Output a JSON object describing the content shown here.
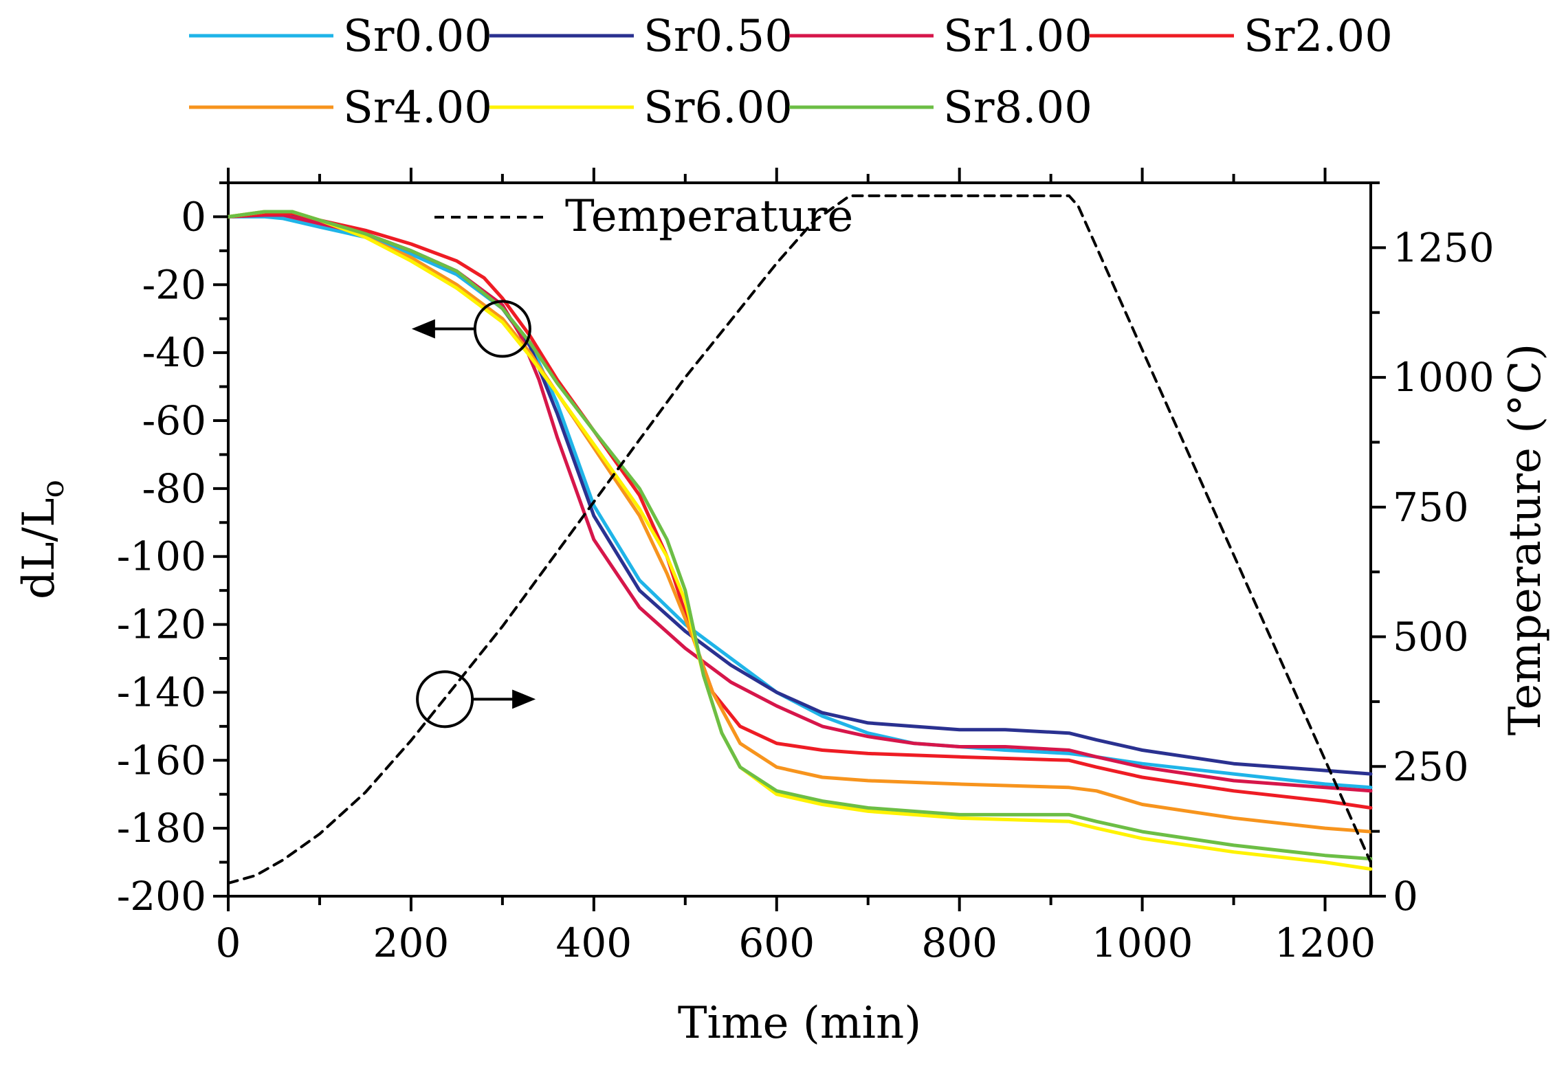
{
  "chart_data": {
    "type": "line",
    "title": "",
    "xlabel": "Time (min)",
    "ylabel_left": "dL/L",
    "ylabel_left_subscript": "o",
    "ylabel_right": "Temperature (°C)",
    "xlim": [
      0,
      1250
    ],
    "ylim_left": [
      -200,
      10
    ],
    "ylim_right": [
      0,
      1375
    ],
    "x_ticks": [
      0,
      200,
      400,
      600,
      800,
      1000,
      1200
    ],
    "x_tick_labels": [
      "0",
      "200",
      "400",
      "600",
      "800",
      "1000",
      "1200"
    ],
    "y_left_ticks": [
      0,
      -20,
      -40,
      -60,
      -80,
      -100,
      -120,
      -140,
      -160,
      -180,
      -200
    ],
    "y_left_tick_labels": [
      "0",
      "-20",
      "-40",
      "-60",
      "-80",
      "-100",
      "-120",
      "-140",
      "-160",
      "-180",
      "-200"
    ],
    "y_right_ticks": [
      0,
      250,
      500,
      750,
      1000,
      1250
    ],
    "y_right_tick_labels": [
      "0",
      "250",
      "500",
      "750",
      "1000",
      "1250"
    ],
    "legend_placement": "top (above plot, two rows)",
    "grid": false,
    "series": [
      {
        "name": "Sr0.00",
        "color": "#1fb4e8",
        "axis": "left",
        "points": [
          [
            0,
            0
          ],
          [
            40,
            0
          ],
          [
            60,
            -0.5
          ],
          [
            100,
            -3
          ],
          [
            150,
            -6
          ],
          [
            200,
            -11
          ],
          [
            250,
            -17
          ],
          [
            300,
            -27
          ],
          [
            330,
            -37
          ],
          [
            360,
            -55
          ],
          [
            400,
            -85
          ],
          [
            450,
            -107
          ],
          [
            500,
            -120
          ],
          [
            550,
            -130
          ],
          [
            600,
            -140
          ],
          [
            650,
            -147
          ],
          [
            700,
            -152
          ],
          [
            750,
            -155
          ],
          [
            800,
            -156
          ],
          [
            850,
            -157
          ],
          [
            920,
            -158
          ],
          [
            950,
            -159
          ],
          [
            1000,
            -161
          ],
          [
            1100,
            -164
          ],
          [
            1200,
            -167
          ],
          [
            1250,
            -168
          ]
        ]
      },
      {
        "name": "Sr0.50",
        "color": "#2a3190",
        "axis": "left",
        "points": [
          [
            0,
            0
          ],
          [
            40,
            1
          ],
          [
            60,
            1.5
          ],
          [
            100,
            -1
          ],
          [
            150,
            -5
          ],
          [
            200,
            -10
          ],
          [
            250,
            -16
          ],
          [
            300,
            -27
          ],
          [
            330,
            -38
          ],
          [
            360,
            -58
          ],
          [
            400,
            -88
          ],
          [
            450,
            -110
          ],
          [
            500,
            -122
          ],
          [
            550,
            -132
          ],
          [
            600,
            -140
          ],
          [
            650,
            -146
          ],
          [
            700,
            -149
          ],
          [
            750,
            -150
          ],
          [
            800,
            -151
          ],
          [
            850,
            -151
          ],
          [
            920,
            -152
          ],
          [
            950,
            -154
          ],
          [
            1000,
            -157
          ],
          [
            1100,
            -161
          ],
          [
            1200,
            -163
          ],
          [
            1250,
            -164
          ]
        ]
      },
      {
        "name": "Sr1.00",
        "color": "#d6164a",
        "axis": "left",
        "points": [
          [
            0,
            0
          ],
          [
            40,
            0.5
          ],
          [
            60,
            0.5
          ],
          [
            100,
            -2
          ],
          [
            150,
            -5
          ],
          [
            200,
            -10
          ],
          [
            250,
            -16
          ],
          [
            300,
            -26
          ],
          [
            320,
            -35
          ],
          [
            340,
            -48
          ],
          [
            360,
            -65
          ],
          [
            400,
            -95
          ],
          [
            450,
            -115
          ],
          [
            500,
            -127
          ],
          [
            550,
            -137
          ],
          [
            600,
            -144
          ],
          [
            650,
            -150
          ],
          [
            700,
            -153
          ],
          [
            750,
            -155
          ],
          [
            800,
            -156
          ],
          [
            850,
            -156
          ],
          [
            920,
            -157
          ],
          [
            950,
            -159
          ],
          [
            1000,
            -162
          ],
          [
            1100,
            -166
          ],
          [
            1200,
            -168
          ],
          [
            1250,
            -169
          ]
        ]
      },
      {
        "name": "Sr2.00",
        "color": "#ee1c24",
        "axis": "left",
        "points": [
          [
            0,
            0
          ],
          [
            40,
            1
          ],
          [
            70,
            1
          ],
          [
            100,
            -1
          ],
          [
            150,
            -4
          ],
          [
            200,
            -8
          ],
          [
            250,
            -13
          ],
          [
            280,
            -18
          ],
          [
            300,
            -24
          ],
          [
            330,
            -35
          ],
          [
            360,
            -48
          ],
          [
            400,
            -63
          ],
          [
            450,
            -82
          ],
          [
            480,
            -100
          ],
          [
            510,
            -125
          ],
          [
            530,
            -140
          ],
          [
            560,
            -150
          ],
          [
            600,
            -155
          ],
          [
            650,
            -157
          ],
          [
            700,
            -158
          ],
          [
            800,
            -159
          ],
          [
            920,
            -160
          ],
          [
            950,
            -162
          ],
          [
            1000,
            -165
          ],
          [
            1100,
            -169
          ],
          [
            1200,
            -172
          ],
          [
            1250,
            -174
          ]
        ]
      },
      {
        "name": "Sr4.00",
        "color": "#f7941d",
        "axis": "left",
        "points": [
          [
            0,
            0
          ],
          [
            40,
            1.5
          ],
          [
            70,
            1.5
          ],
          [
            100,
            -1
          ],
          [
            150,
            -6
          ],
          [
            200,
            -12
          ],
          [
            250,
            -20
          ],
          [
            300,
            -30
          ],
          [
            330,
            -40
          ],
          [
            360,
            -52
          ],
          [
            400,
            -68
          ],
          [
            450,
            -88
          ],
          [
            480,
            -105
          ],
          [
            510,
            -125
          ],
          [
            530,
            -140
          ],
          [
            560,
            -155
          ],
          [
            600,
            -162
          ],
          [
            650,
            -165
          ],
          [
            700,
            -166
          ],
          [
            800,
            -167
          ],
          [
            920,
            -168
          ],
          [
            950,
            -169
          ],
          [
            1000,
            -173
          ],
          [
            1100,
            -177
          ],
          [
            1200,
            -180
          ],
          [
            1250,
            -181
          ]
        ]
      },
      {
        "name": "Sr6.00",
        "color": "#fff200",
        "axis": "left",
        "points": [
          [
            0,
            0
          ],
          [
            40,
            1.5
          ],
          [
            70,
            1.5
          ],
          [
            100,
            -1
          ],
          [
            150,
            -6
          ],
          [
            200,
            -13
          ],
          [
            250,
            -21
          ],
          [
            300,
            -31
          ],
          [
            330,
            -41
          ],
          [
            360,
            -52
          ],
          [
            400,
            -67
          ],
          [
            450,
            -86
          ],
          [
            480,
            -100
          ],
          [
            500,
            -113
          ],
          [
            520,
            -135
          ],
          [
            540,
            -152
          ],
          [
            560,
            -162
          ],
          [
            600,
            -170
          ],
          [
            650,
            -173
          ],
          [
            700,
            -175
          ],
          [
            800,
            -177
          ],
          [
            920,
            -178
          ],
          [
            950,
            -180
          ],
          [
            1000,
            -183
          ],
          [
            1100,
            -187
          ],
          [
            1200,
            -190
          ],
          [
            1250,
            -192
          ]
        ]
      },
      {
        "name": "Sr8.00",
        "color": "#6cbe45",
        "axis": "left",
        "points": [
          [
            0,
            0
          ],
          [
            40,
            1.5
          ],
          [
            70,
            1.5
          ],
          [
            100,
            -1
          ],
          [
            150,
            -5
          ],
          [
            200,
            -10
          ],
          [
            250,
            -16
          ],
          [
            300,
            -27
          ],
          [
            330,
            -37
          ],
          [
            360,
            -49
          ],
          [
            400,
            -63
          ],
          [
            450,
            -80
          ],
          [
            480,
            -95
          ],
          [
            500,
            -110
          ],
          [
            520,
            -135
          ],
          [
            540,
            -152
          ],
          [
            560,
            -162
          ],
          [
            600,
            -169
          ],
          [
            650,
            -172
          ],
          [
            700,
            -174
          ],
          [
            800,
            -176
          ],
          [
            920,
            -176
          ],
          [
            950,
            -178
          ],
          [
            1000,
            -181
          ],
          [
            1100,
            -185
          ],
          [
            1200,
            -188
          ],
          [
            1250,
            -189
          ]
        ]
      },
      {
        "name": "Temperature",
        "color": "#000000",
        "axis": "right",
        "dashed": true,
        "points": [
          [
            0,
            25
          ],
          [
            30,
            40
          ],
          [
            60,
            70
          ],
          [
            100,
            120
          ],
          [
            150,
            200
          ],
          [
            200,
            300
          ],
          [
            250,
            410
          ],
          [
            300,
            520
          ],
          [
            350,
            640
          ],
          [
            400,
            760
          ],
          [
            450,
            880
          ],
          [
            500,
            1000
          ],
          [
            550,
            1110
          ],
          [
            600,
            1220
          ],
          [
            640,
            1300
          ],
          [
            680,
            1350
          ],
          [
            920,
            1350
          ],
          [
            930,
            1330
          ],
          [
            1250,
            65
          ]
        ]
      }
    ],
    "annotations": [
      {
        "type": "circle-arrow",
        "direction": "left",
        "target_axis": "left",
        "at_x": 300,
        "at_y": -33
      },
      {
        "type": "circle-arrow",
        "direction": "right",
        "target_axis": "right",
        "at_x": 237,
        "at_y": -142
      }
    ]
  }
}
